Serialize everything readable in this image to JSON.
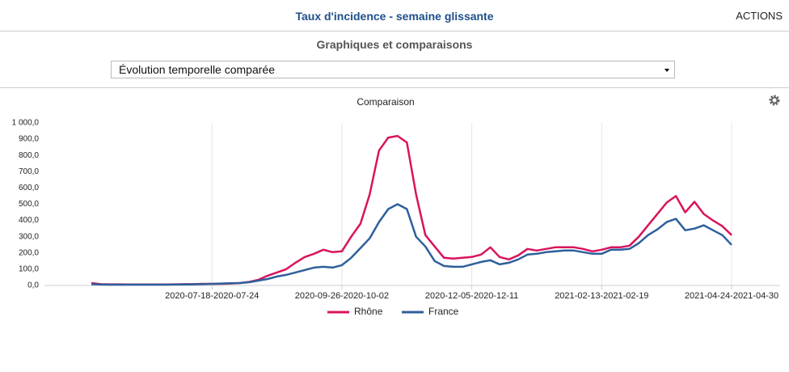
{
  "header": {
    "title": "Taux d'incidence - semaine glissante",
    "actions": "ACTIONS"
  },
  "section_title": "Graphiques et comparaisons",
  "select": {
    "value": "Évolution temporelle comparée"
  },
  "chart_data": {
    "type": "line",
    "title": "Comparaison",
    "categories": [
      null,
      null,
      null,
      null,
      null,
      null,
      null,
      null,
      null,
      null,
      null,
      null,
      null,
      "2020-07-18-2020-07-24",
      null,
      null,
      null,
      null,
      null,
      null,
      null,
      null,
      null,
      null,
      null,
      null,
      null,
      "2020-09-26-2020-10-02",
      null,
      null,
      null,
      null,
      null,
      null,
      null,
      null,
      null,
      null,
      null,
      null,
      null,
      "2020-12-05-2020-12-11",
      null,
      null,
      null,
      null,
      null,
      null,
      null,
      null,
      null,
      null,
      null,
      null,
      null,
      "2021-02-13-2021-02-19",
      null,
      null,
      null,
      null,
      null,
      null,
      null,
      null,
      null,
      null,
      null,
      null,
      null,
      "2021-04-24-2021-04-30"
    ],
    "series": [
      {
        "name": "Rhône",
        "color": "#d9135d",
        "values": [
          15,
          8,
          7,
          7,
          6,
          6,
          6,
          6,
          6,
          7,
          8,
          8,
          10,
          10,
          10,
          12,
          15,
          22,
          35,
          60,
          80,
          100,
          140,
          175,
          195,
          220,
          205,
          210,
          300,
          380,
          560,
          830,
          910,
          920,
          880,
          560,
          310,
          240,
          170,
          165,
          170,
          175,
          190,
          235,
          175,
          160,
          185,
          225,
          215,
          225,
          235,
          235,
          235,
          225,
          210,
          220,
          235,
          235,
          245,
          300,
          370,
          440,
          510,
          550,
          450,
          515,
          440,
          400,
          365,
          310
        ]
      },
      {
        "name": "France",
        "color": "#2e5f9b",
        "values": [
          8,
          6,
          5,
          5,
          5,
          5,
          5,
          5,
          5,
          6,
          6,
          7,
          8,
          10,
          12,
          14,
          15,
          20,
          30,
          40,
          55,
          65,
          80,
          95,
          110,
          115,
          110,
          125,
          170,
          230,
          290,
          390,
          470,
          500,
          470,
          300,
          240,
          150,
          120,
          115,
          115,
          130,
          145,
          155,
          130,
          140,
          160,
          190,
          195,
          205,
          210,
          215,
          215,
          205,
          195,
          195,
          220,
          220,
          225,
          260,
          310,
          345,
          390,
          410,
          340,
          350,
          370,
          340,
          310,
          250
        ]
      }
    ],
    "ylim": [
      0,
      1000
    ],
    "yticks": [
      {
        "value": 0,
        "label": "0,0"
      },
      {
        "value": 100,
        "label": "100,0"
      },
      {
        "value": 200,
        "label": "200,0"
      },
      {
        "value": 300,
        "label": "300,0"
      },
      {
        "value": 400,
        "label": "400,0"
      },
      {
        "value": 500,
        "label": "500,0"
      },
      {
        "value": 600,
        "label": "600,0"
      },
      {
        "value": 700,
        "label": "700,0"
      },
      {
        "value": 800,
        "label": "800,0"
      },
      {
        "value": 900,
        "label": "900,0"
      },
      {
        "value": 1000,
        "label": "1 000,0"
      }
    ],
    "legend": "bottom"
  }
}
